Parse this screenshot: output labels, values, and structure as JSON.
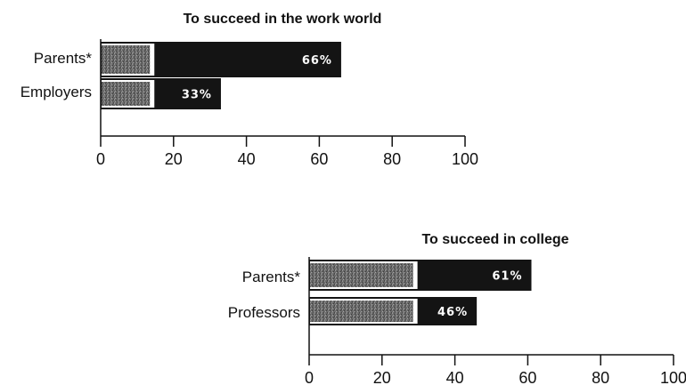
{
  "chart_data": [
    {
      "type": "bar",
      "title": "To succeed in the work world",
      "categories": [
        "Parents*",
        "Employers"
      ],
      "values": [
        66,
        33
      ],
      "value_labels": [
        "66%",
        "33%"
      ],
      "xlim": [
        0,
        100
      ],
      "x_ticks": [
        "0",
        "20",
        "40",
        "60",
        "80",
        "100"
      ],
      "orientation": "horizontal",
      "grid": false
    },
    {
      "type": "bar",
      "title": "To succeed in college",
      "categories": [
        "Parents*",
        "Professors"
      ],
      "values": [
        61,
        46
      ],
      "value_labels": [
        "61%",
        "46%"
      ],
      "xlim": [
        0,
        100
      ],
      "x_ticks": [
        "0",
        "20",
        "40",
        "60",
        "80",
        "100"
      ],
      "orientation": "horizontal",
      "grid": false
    }
  ],
  "colors": {
    "bar_fill": "#141414",
    "bar_shaded": "#5a5a5a",
    "bar_shaded_light": "#8a8a8a",
    "value_text": "#ffffff",
    "axis": "#111111"
  }
}
